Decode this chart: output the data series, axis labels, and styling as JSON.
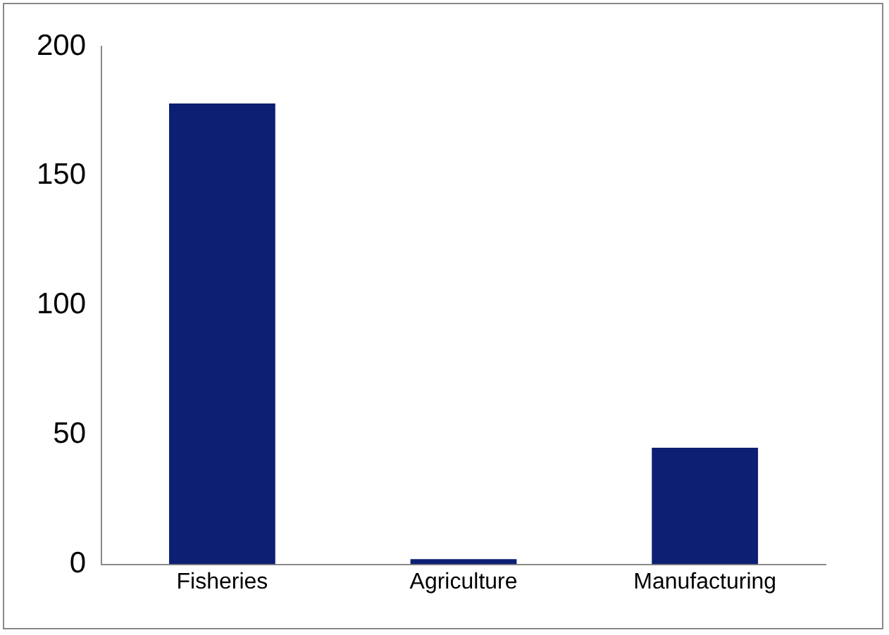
{
  "chart_data": {
    "type": "bar",
    "categories": [
      "Fisheries",
      "Agriculture",
      "Manufacturing"
    ],
    "values": [
      178,
      2,
      45
    ],
    "color": "#0d1f73",
    "ylim": [
      0,
      200
    ],
    "yticks": [
      0,
      50,
      100,
      150,
      200
    ],
    "grid": false
  }
}
